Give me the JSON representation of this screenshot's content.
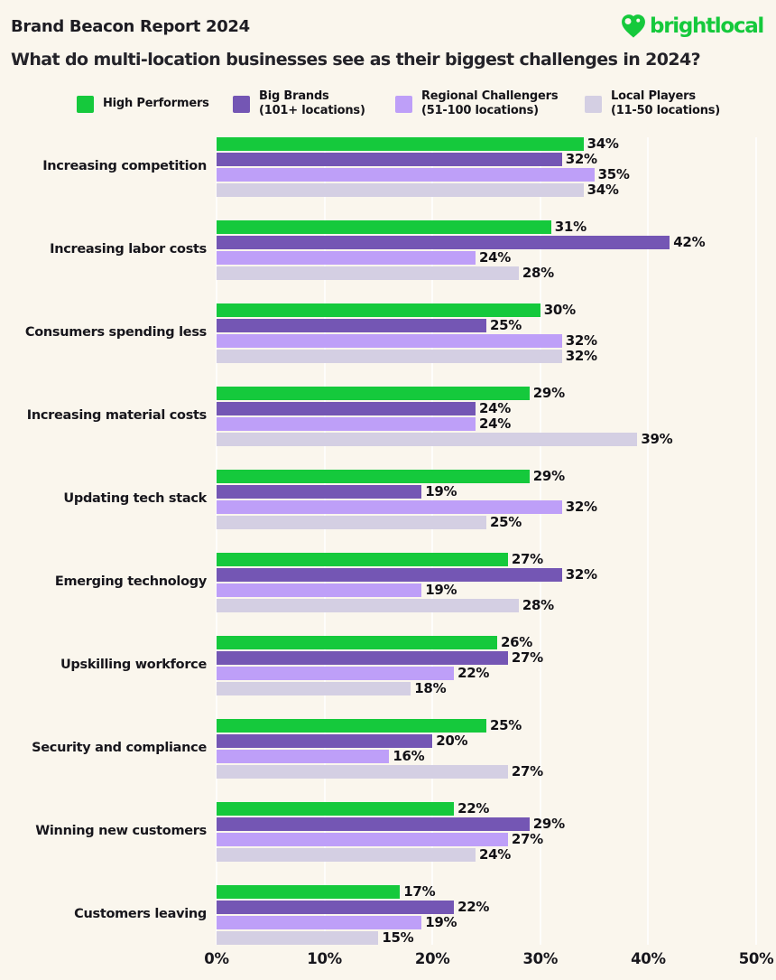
{
  "header": {
    "report_label": "Brand Beacon Report 2024",
    "title": "What do multi-location businesses see as their biggest challenges in 2024?"
  },
  "logo": {
    "text": "brightlocal",
    "icon": "heart-location-pin-icon",
    "color": "#15C93C"
  },
  "legend": [
    {
      "label": "High Performers",
      "sublabel": "",
      "color": "#15C93C"
    },
    {
      "label": "Big Brands",
      "sublabel": "(101+ locations)",
      "color": "#7456B4"
    },
    {
      "label": "Regional Challengers",
      "sublabel": "(51-100 locations)",
      "color": "#BE9FF8"
    },
    {
      "label": "Local Players",
      "sublabel": "(11-50 locations)",
      "color": "#D4CFE3"
    }
  ],
  "chart_data": {
    "type": "bar",
    "orientation": "horizontal",
    "title": "What do multi-location businesses see as their biggest challenges in 2024?",
    "categories": [
      "Increasing competition",
      "Increasing labor costs",
      "Consumers spending less",
      "Increasing material costs",
      "Updating tech stack",
      "Emerging technology",
      "Upskilling workforce",
      "Security and compliance",
      "Winning new customers",
      "Customers leaving"
    ],
    "series": [
      {
        "name": "High Performers",
        "color": "#15C93C",
        "values": [
          34,
          31,
          30,
          29,
          29,
          27,
          26,
          25,
          22,
          17
        ]
      },
      {
        "name": "Big Brands (101+ locations)",
        "color": "#7456B4",
        "values": [
          32,
          42,
          25,
          24,
          19,
          32,
          27,
          20,
          29,
          22
        ]
      },
      {
        "name": "Regional Challengers (51-100 locations)",
        "color": "#BE9FF8",
        "values": [
          35,
          24,
          32,
          24,
          32,
          19,
          22,
          16,
          27,
          19
        ]
      },
      {
        "name": "Local Players (11-50 locations)",
        "color": "#D4CFE3",
        "values": [
          34,
          28,
          32,
          39,
          25,
          28,
          18,
          27,
          24,
          15
        ]
      }
    ],
    "value_suffix": "%",
    "xlim": [
      0,
      50
    ],
    "x_ticks": [
      "0%",
      "10%",
      "20%",
      "30%",
      "40%",
      "50%"
    ],
    "grid": true,
    "legend_position": "top",
    "data_labels": true
  },
  "style": {
    "background": "#FAF6ED",
    "accent_green": "#15C93C",
    "title_color": "#242329",
    "gridline_color": "rgba(255,255,255,0.78)"
  }
}
